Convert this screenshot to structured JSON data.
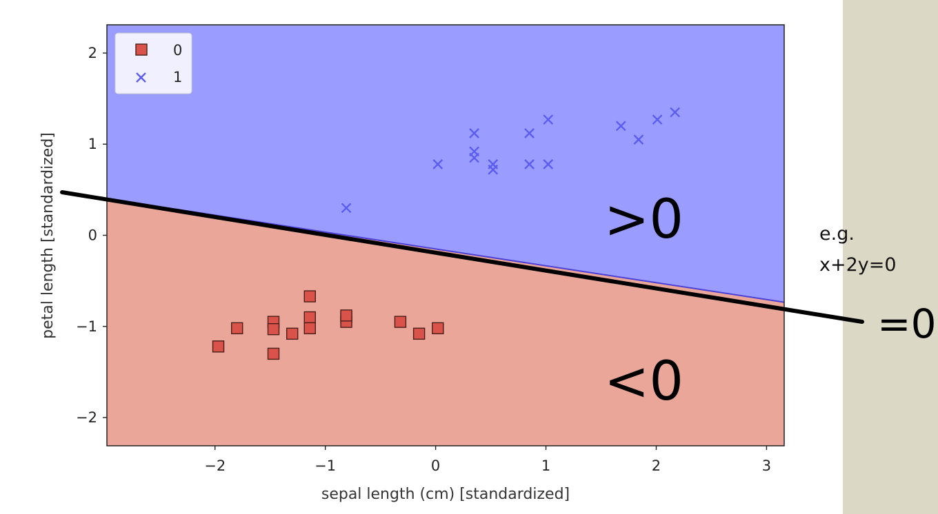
{
  "chart_data": {
    "type": "scatter",
    "xlabel": "sepal length (cm) [standardized]",
    "ylabel": "petal length [standardized]",
    "xlim": [
      -2.98,
      3.16
    ],
    "ylim": [
      -2.31,
      2.31
    ],
    "x_ticks": [
      -2,
      -1,
      0,
      1,
      2,
      3
    ],
    "x_tick_labels": [
      "−2",
      "−1",
      "0",
      "1",
      "2",
      "3"
    ],
    "y_ticks": [
      -2,
      -1,
      0,
      1,
      2
    ],
    "y_tick_labels": [
      "−2",
      "−1",
      "0",
      "1",
      "2"
    ],
    "grid": false,
    "legend_position": "top-left",
    "decision_boundary": {
      "slope": -0.185,
      "intercept": -0.15
    },
    "regions": [
      {
        "class": "1",
        "side": "above",
        "color": "#9a9cff"
      },
      {
        "class": "0",
        "side": "below",
        "color": "#e9a699"
      }
    ],
    "series": [
      {
        "name": "0",
        "marker": "square",
        "color": "#d9534a",
        "edge_color": "#4a1e19",
        "points": [
          [
            -1.97,
            -1.22
          ],
          [
            -1.8,
            -1.02
          ],
          [
            -1.47,
            -0.95
          ],
          [
            -1.47,
            -1.03
          ],
          [
            -1.47,
            -1.3
          ],
          [
            -1.3,
            -1.08
          ],
          [
            -1.14,
            -0.67
          ],
          [
            -1.14,
            -0.9
          ],
          [
            -1.14,
            -1.02
          ],
          [
            -0.81,
            -0.9
          ],
          [
            -0.81,
            -0.95
          ],
          [
            -0.81,
            -0.88
          ],
          [
            -0.32,
            -0.95
          ],
          [
            -0.15,
            -1.08
          ],
          [
            0.02,
            -1.02
          ]
        ]
      },
      {
        "name": "1",
        "marker": "x",
        "color": "#5b5cf0",
        "points": [
          [
            -0.81,
            0.3
          ],
          [
            0.02,
            0.78
          ],
          [
            0.35,
            1.12
          ],
          [
            0.35,
            0.92
          ],
          [
            0.35,
            0.85
          ],
          [
            0.52,
            0.78
          ],
          [
            0.52,
            0.72
          ],
          [
            0.85,
            1.12
          ],
          [
            0.85,
            0.78
          ],
          [
            1.02,
            1.27
          ],
          [
            1.02,
            0.78
          ],
          [
            1.68,
            1.2
          ],
          [
            1.84,
            1.05
          ],
          [
            2.01,
            1.27
          ],
          [
            2.17,
            1.35
          ]
        ]
      }
    ]
  },
  "annotations": {
    "positive_region": ">0",
    "negative_region": "<0",
    "example_line1": "e.g.",
    "example_line2": "x+2y=0",
    "boundary_label": "=0"
  }
}
